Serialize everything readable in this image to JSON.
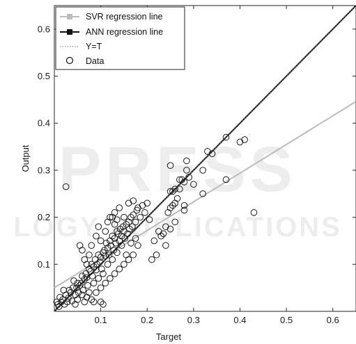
{
  "chart_data": {
    "type": "scatter",
    "xlabel": "Target",
    "ylabel": "Output",
    "xlim": [
      0,
      0.65
    ],
    "ylim": [
      0,
      0.65
    ],
    "xticks": [
      0.1,
      0.2,
      0.3,
      0.4,
      0.5,
      0.6
    ],
    "yticks": [
      0.1,
      0.2,
      0.3,
      0.4,
      0.5,
      0.6
    ],
    "grid": false,
    "legend_position": "top-left",
    "legend": [
      {
        "label": "SVR regression line",
        "style": "svr"
      },
      {
        "label": "ANN regression line",
        "style": "ann"
      },
      {
        "label": "Y=T",
        "style": "identity"
      },
      {
        "label": "Data",
        "style": "data"
      }
    ],
    "lines": [
      {
        "name": "SVR regression line",
        "color": "#bcbcbc",
        "x": [
          0,
          0.65
        ],
        "y": [
          0.05,
          0.446
        ]
      },
      {
        "name": "ANN regression line",
        "color": "#111111",
        "x": [
          0,
          0.65
        ],
        "y": [
          0.0,
          0.65
        ]
      },
      {
        "name": "Y=T",
        "color": "#777777",
        "x": [
          0,
          0.65
        ],
        "y": [
          0.0,
          0.65
        ]
      }
    ],
    "data_points": [
      [
        0.005,
        0.02
      ],
      [
        0.008,
        0.015
      ],
      [
        0.01,
        0.01
      ],
      [
        0.012,
        0.03
      ],
      [
        0.015,
        0.02
      ],
      [
        0.018,
        0.025
      ],
      [
        0.02,
        0.045
      ],
      [
        0.022,
        0.015
      ],
      [
        0.025,
        0.035
      ],
      [
        0.028,
        0.02
      ],
      [
        0.03,
        0.028
      ],
      [
        0.032,
        0.045
      ],
      [
        0.035,
        0.04
      ],
      [
        0.038,
        0.022
      ],
      [
        0.04,
        0.05
      ],
      [
        0.042,
        0.065
      ],
      [
        0.045,
        0.035
      ],
      [
        0.048,
        0.05
      ],
      [
        0.05,
        0.06
      ],
      [
        0.052,
        0.04
      ],
      [
        0.055,
        0.055
      ],
      [
        0.058,
        0.06
      ],
      [
        0.06,
        0.075
      ],
      [
        0.062,
        0.045
      ],
      [
        0.065,
        0.068
      ],
      [
        0.068,
        0.08
      ],
      [
        0.07,
        0.072
      ],
      [
        0.072,
        0.055
      ],
      [
        0.075,
        0.09
      ],
      [
        0.078,
        0.085
      ],
      [
        0.08,
        0.1
      ],
      [
        0.082,
        0.075
      ],
      [
        0.085,
        0.095
      ],
      [
        0.088,
        0.11
      ],
      [
        0.09,
        0.088
      ],
      [
        0.092,
        0.1
      ],
      [
        0.095,
        0.12
      ],
      [
        0.098,
        0.105
      ],
      [
        0.1,
        0.115
      ],
      [
        0.102,
        0.09
      ],
      [
        0.105,
        0.125
      ],
      [
        0.108,
        0.13
      ],
      [
        0.11,
        0.118
      ],
      [
        0.112,
        0.145
      ],
      [
        0.115,
        0.135
      ],
      [
        0.118,
        0.12
      ],
      [
        0.12,
        0.15
      ],
      [
        0.122,
        0.14
      ],
      [
        0.125,
        0.16
      ],
      [
        0.128,
        0.13
      ],
      [
        0.13,
        0.155
      ],
      [
        0.132,
        0.145
      ],
      [
        0.135,
        0.17
      ],
      [
        0.138,
        0.165
      ],
      [
        0.14,
        0.15
      ],
      [
        0.142,
        0.175
      ],
      [
        0.145,
        0.16
      ],
      [
        0.148,
        0.18
      ],
      [
        0.15,
        0.17
      ],
      [
        0.152,
        0.155
      ],
      [
        0.155,
        0.185
      ],
      [
        0.158,
        0.165
      ],
      [
        0.16,
        0.19
      ],
      [
        0.162,
        0.175
      ],
      [
        0.165,
        0.2
      ],
      [
        0.168,
        0.18
      ],
      [
        0.17,
        0.205
      ],
      [
        0.175,
        0.19
      ],
      [
        0.178,
        0.215
      ],
      [
        0.18,
        0.22
      ],
      [
        0.185,
        0.2
      ],
      [
        0.19,
        0.225
      ],
      [
        0.195,
        0.21
      ],
      [
        0.2,
        0.23
      ],
      [
        0.205,
        0.195
      ],
      [
        0.055,
        0.14
      ],
      [
        0.06,
        0.13
      ],
      [
        0.065,
        0.11
      ],
      [
        0.07,
        0.1
      ],
      [
        0.075,
        0.12
      ],
      [
        0.08,
        0.14
      ],
      [
        0.09,
        0.16
      ],
      [
        0.095,
        0.18
      ],
      [
        0.1,
        0.15
      ],
      [
        0.11,
        0.17
      ],
      [
        0.115,
        0.19
      ],
      [
        0.12,
        0.2
      ],
      [
        0.13,
        0.21
      ],
      [
        0.14,
        0.22
      ],
      [
        0.15,
        0.2
      ],
      [
        0.16,
        0.23
      ],
      [
        0.17,
        0.235
      ],
      [
        0.13,
        0.185
      ],
      [
        0.125,
        0.2
      ],
      [
        0.135,
        0.195
      ],
      [
        0.09,
        0.04
      ],
      [
        0.1,
        0.05
      ],
      [
        0.11,
        0.06
      ],
      [
        0.12,
        0.07
      ],
      [
        0.13,
        0.08
      ],
      [
        0.14,
        0.09
      ],
      [
        0.15,
        0.1
      ],
      [
        0.16,
        0.11
      ],
      [
        0.17,
        0.12
      ],
      [
        0.18,
        0.14
      ],
      [
        0.085,
        0.06
      ],
      [
        0.095,
        0.07
      ],
      [
        0.105,
        0.08
      ],
      [
        0.115,
        0.1
      ],
      [
        0.125,
        0.11
      ],
      [
        0.135,
        0.125
      ],
      [
        0.145,
        0.14
      ],
      [
        0.155,
        0.12
      ],
      [
        0.165,
        0.145
      ],
      [
        0.175,
        0.155
      ],
      [
        0.07,
        0.03
      ],
      [
        0.075,
        0.04
      ],
      [
        0.065,
        0.02
      ],
      [
        0.08,
        0.025
      ],
      [
        0.1,
        0.02
      ],
      [
        0.105,
        0.015
      ],
      [
        0.085,
        0.02
      ],
      [
        0.06,
        0.035
      ],
      [
        0.05,
        0.025
      ],
      [
        0.045,
        0.015
      ],
      [
        0.025,
        0.265
      ],
      [
        0.21,
        0.11
      ],
      [
        0.215,
        0.15
      ],
      [
        0.22,
        0.12
      ],
      [
        0.225,
        0.17
      ],
      [
        0.23,
        0.16
      ],
      [
        0.24,
        0.18
      ],
      [
        0.245,
        0.21
      ],
      [
        0.25,
        0.22
      ],
      [
        0.255,
        0.225
      ],
      [
        0.26,
        0.23
      ],
      [
        0.25,
        0.175
      ],
      [
        0.24,
        0.14
      ],
      [
        0.235,
        0.165
      ],
      [
        0.26,
        0.19
      ],
      [
        0.265,
        0.24
      ],
      [
        0.25,
        0.31
      ],
      [
        0.25,
        0.255
      ],
      [
        0.27,
        0.26
      ],
      [
        0.275,
        0.28
      ],
      [
        0.28,
        0.275
      ],
      [
        0.285,
        0.3
      ],
      [
        0.29,
        0.285
      ],
      [
        0.3,
        0.27
      ],
      [
        0.32,
        0.3
      ],
      [
        0.33,
        0.34
      ],
      [
        0.34,
        0.335
      ],
      [
        0.28,
        0.225
      ],
      [
        0.28,
        0.215
      ],
      [
        0.32,
        0.25
      ],
      [
        0.37,
        0.37
      ],
      [
        0.37,
        0.28
      ],
      [
        0.4,
        0.36
      ],
      [
        0.41,
        0.365
      ],
      [
        0.43,
        0.21
      ],
      [
        0.285,
        0.32
      ],
      [
        0.26,
        0.26
      ],
      [
        0.27,
        0.28
      ],
      [
        0.255,
        0.255
      ]
    ]
  }
}
